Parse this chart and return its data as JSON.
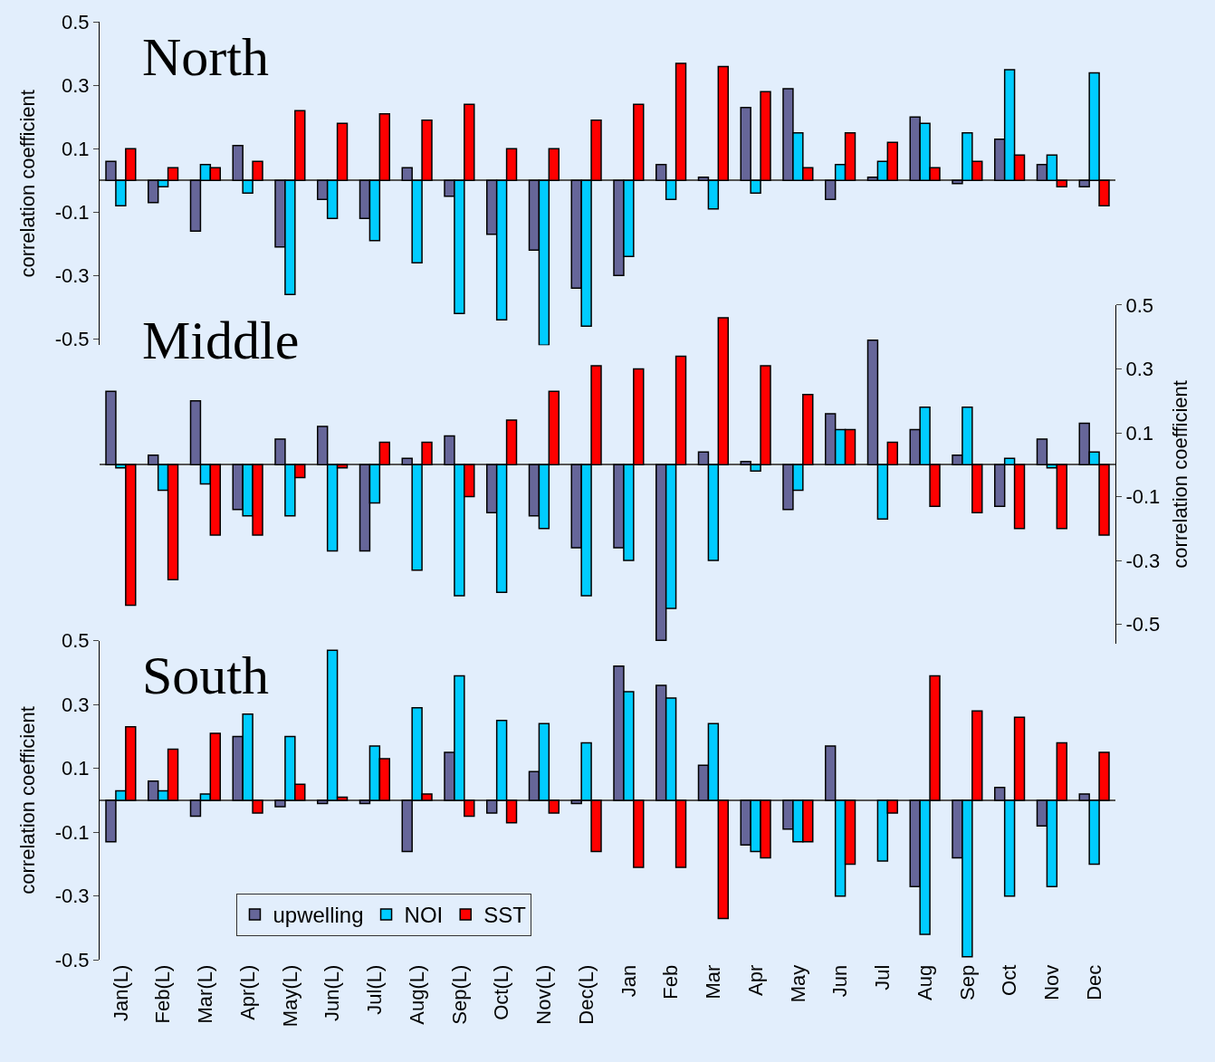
{
  "chart_data": [
    {
      "type": "bar",
      "title": "North",
      "ylabel": "correlation coefficient",
      "legend": false,
      "tick_labels": "y",
      "categories": [
        null,
        null,
        null,
        null,
        null,
        null,
        null,
        null,
        null,
        null,
        null,
        null,
        null,
        null,
        null,
        null,
        null,
        null,
        null,
        null,
        null,
        null,
        null,
        null
      ],
      "ylim": [
        -0.52,
        0.5
      ],
      "yticks": [
        -0.5,
        -0.3,
        -0.1,
        0.1,
        0.3,
        0.5
      ],
      "series": [
        {
          "color": "#666699",
          "values": [
            0.06,
            -0.07,
            -0.16,
            0.11,
            -0.21,
            -0.06,
            -0.12,
            0.04,
            -0.05,
            -0.17,
            -0.22,
            -0.34,
            -0.3,
            0.05,
            0.01,
            0.23,
            0.29,
            -0.06,
            0.01,
            0.2,
            -0.01,
            0.13,
            0.05,
            -0.02
          ]
        },
        {
          "color": "#00ccff",
          "values": [
            -0.08,
            -0.02,
            0.05,
            -0.04,
            -0.36,
            -0.12,
            -0.19,
            -0.26,
            -0.42,
            -0.44,
            -0.52,
            -0.46,
            -0.24,
            -0.06,
            -0.09,
            -0.04,
            0.15,
            0.05,
            0.06,
            0.18,
            0.15,
            0.35,
            0.08,
            0.34
          ]
        },
        {
          "color": "#ff0000",
          "values": [
            0.1,
            0.04,
            0.04,
            0.06,
            0.22,
            0.18,
            0.21,
            0.19,
            0.24,
            0.1,
            0.1,
            0.19,
            0.24,
            0.37,
            0.36,
            0.28,
            0.04,
            0.15,
            0.12,
            0.04,
            0.06,
            0.08,
            -0.02,
            -0.08
          ]
        }
      ]
    },
    {
      "type": "bar",
      "title": "Middle",
      "y2label": "correlation coefficient",
      "legend": false,
      "tick_labels": "y",
      "categories": [
        null,
        null,
        null,
        null,
        null,
        null,
        null,
        null,
        null,
        null,
        null,
        null,
        null,
        null,
        null,
        null,
        null,
        null,
        null,
        null,
        null,
        null,
        null,
        null
      ],
      "y2lim": [
        -0.56,
        0.5
      ],
      "y2ticks": [
        -0.5,
        -0.3,
        -0.1,
        0.1,
        0.3,
        0.5
      ],
      "series": [
        {
          "color": "#666699",
          "axis": "y2",
          "values": [
            0.23,
            0.03,
            0.2,
            -0.14,
            0.08,
            0.12,
            -0.27,
            0.02,
            0.09,
            -0.15,
            -0.16,
            -0.26,
            -0.26,
            -0.55,
            0.04,
            0.01,
            -0.14,
            0.16,
            0.39,
            0.11,
            0.03,
            -0.13,
            0.08,
            0.13
          ]
        },
        {
          "color": "#00ccff",
          "axis": "y2",
          "values": [
            -0.01,
            -0.08,
            -0.06,
            -0.16,
            -0.16,
            -0.27,
            -0.12,
            -0.33,
            -0.41,
            -0.4,
            -0.2,
            -0.41,
            -0.3,
            -0.45,
            -0.3,
            -0.02,
            -0.08,
            0.11,
            -0.17,
            0.18,
            0.18,
            0.02,
            -0.01,
            0.04
          ]
        },
        {
          "color": "#ff0000",
          "axis": "y2",
          "values": [
            -0.44,
            -0.36,
            -0.22,
            -0.22,
            -0.04,
            -0.01,
            0.07,
            0.07,
            -0.1,
            0.14,
            0.23,
            0.31,
            0.3,
            0.34,
            0.46,
            0.31,
            0.22,
            0.11,
            0.07,
            -0.13,
            -0.15,
            -0.2,
            -0.2,
            -0.22
          ]
        }
      ]
    },
    {
      "type": "bar",
      "title": "South",
      "ylabel": "correlation coefficient",
      "legend": "bottom left",
      "categories": [
        "Jan(L)",
        "Feb(L)",
        "Mar(L)",
        "Apr(L)",
        "May(L)",
        "Jun(L)",
        "Jul(L)",
        "Aug(L)",
        "Sep(L)",
        "Oct(L)",
        "Nov(L)",
        "Dec(L)",
        "Jan",
        "Feb",
        "Mar",
        "Apr",
        "May",
        "Jun",
        "Jul",
        "Aug",
        "Sep",
        "Oct",
        "Nov",
        "Dec"
      ],
      "ylim": [
        -0.5,
        0.5
      ],
      "yticks": [
        -0.5,
        -0.3,
        -0.1,
        0.1,
        0.3,
        0.5
      ],
      "series": [
        {
          "name": "upwelling",
          "color": "#666699",
          "values": [
            -0.13,
            0.06,
            -0.05,
            0.2,
            -0.02,
            -0.01,
            -0.01,
            -0.16,
            0.15,
            -0.04,
            0.09,
            -0.01,
            0.42,
            0.36,
            0.11,
            -0.14,
            -0.09,
            0.17,
            null,
            -0.27,
            -0.18,
            0.04,
            -0.08,
            0.02
          ]
        },
        {
          "name": "NOI",
          "color": "#00ccff",
          "values": [
            0.03,
            0.03,
            0.02,
            0.27,
            0.2,
            0.47,
            0.17,
            0.29,
            0.39,
            0.25,
            0.24,
            0.18,
            0.34,
            0.32,
            0.24,
            -0.16,
            -0.13,
            -0.3,
            -0.19,
            -0.42,
            -0.49,
            -0.3,
            -0.27,
            -0.2
          ]
        },
        {
          "name": "SST",
          "color": "#ff0000",
          "values": [
            0.23,
            0.16,
            0.21,
            -0.04,
            0.05,
            0.01,
            0.13,
            0.02,
            -0.05,
            -0.07,
            -0.04,
            -0.16,
            -0.21,
            -0.21,
            -0.37,
            -0.18,
            -0.13,
            -0.2,
            -0.04,
            0.39,
            0.28,
            0.26,
            0.18,
            0.15
          ]
        }
      ]
    }
  ]
}
